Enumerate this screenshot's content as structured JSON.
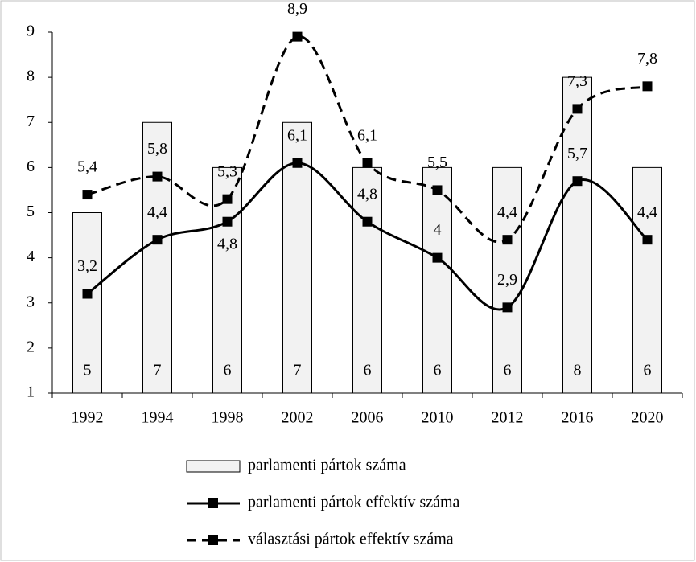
{
  "chart_data": {
    "type": "bar_line",
    "categories": [
      "1992",
      "1994",
      "1998",
      "2002",
      "2006",
      "2010",
      "2012",
      "2016",
      "2020"
    ],
    "series": [
      {
        "name": "parlamenti pártok száma",
        "type": "bar",
        "color": "#f2f2f2",
        "values": [
          5,
          7,
          6,
          7,
          6,
          6,
          6,
          8,
          6
        ]
      },
      {
        "name": "parlamenti pártok effektív száma",
        "type": "line",
        "dash": false,
        "color": "#000000",
        "values": [
          3.2,
          4.4,
          4.8,
          6.1,
          4.8,
          4,
          2.9,
          5.7,
          4.4
        ],
        "value_labels": [
          "3,2",
          "4,4",
          "4,8",
          "6,1",
          "4,8",
          "4",
          "2,9",
          "5,7",
          "4,4"
        ]
      },
      {
        "name": "választási pártok effektív száma",
        "type": "line",
        "dash": true,
        "color": "#000000",
        "values": [
          5.4,
          5.8,
          5.3,
          8.9,
          6.1,
          5.5,
          4.4,
          7.3,
          7.8
        ],
        "value_labels": [
          "5,4",
          "5,8",
          "5,3",
          "8,9",
          "6,1",
          "5,5",
          "4,4",
          "7,3",
          "7,8"
        ]
      }
    ],
    "ylim": [
      1,
      9
    ],
    "yticks": [
      1,
      2,
      3,
      4,
      5,
      6,
      7,
      8,
      9
    ],
    "grid": false,
    "legend": "bottom"
  }
}
